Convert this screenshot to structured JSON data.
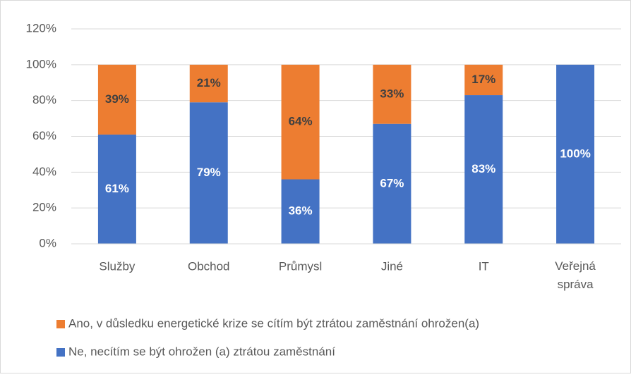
{
  "chart_data": {
    "type": "bar",
    "stacked": true,
    "categories": [
      "Služby",
      "Obchod",
      "Průmysl",
      "Jiné",
      "IT",
      "Veřejná správa"
    ],
    "series": [
      {
        "name": "Ne, necítím se být ohrožen (a) ztrátou zaměstnání",
        "color": "#4472c4",
        "values": [
          61,
          79,
          36,
          67,
          83,
          100
        ],
        "value_labels": [
          "61%",
          "79%",
          "36%",
          "67%",
          "83%",
          "100%"
        ]
      },
      {
        "name": "Ano, v důsledku energetické krize se cítím být ztrátou zaměstnání ohrožen(a)",
        "color": "#ed7d31",
        "values": [
          39,
          21,
          64,
          33,
          17,
          null
        ],
        "value_labels": [
          "39%",
          "21%",
          "64%",
          "33%",
          "17%",
          null
        ]
      }
    ],
    "ylim": [
      0,
      120
    ],
    "yticks": [
      {
        "value": 0,
        "label": "0%"
      },
      {
        "value": 20,
        "label": "20%"
      },
      {
        "value": 40,
        "label": "40%"
      },
      {
        "value": 60,
        "label": "60%"
      },
      {
        "value": 80,
        "label": "80%"
      },
      {
        "value": 100,
        "label": "100%"
      },
      {
        "value": 120,
        "label": "120%"
      }
    ],
    "grid": true
  }
}
